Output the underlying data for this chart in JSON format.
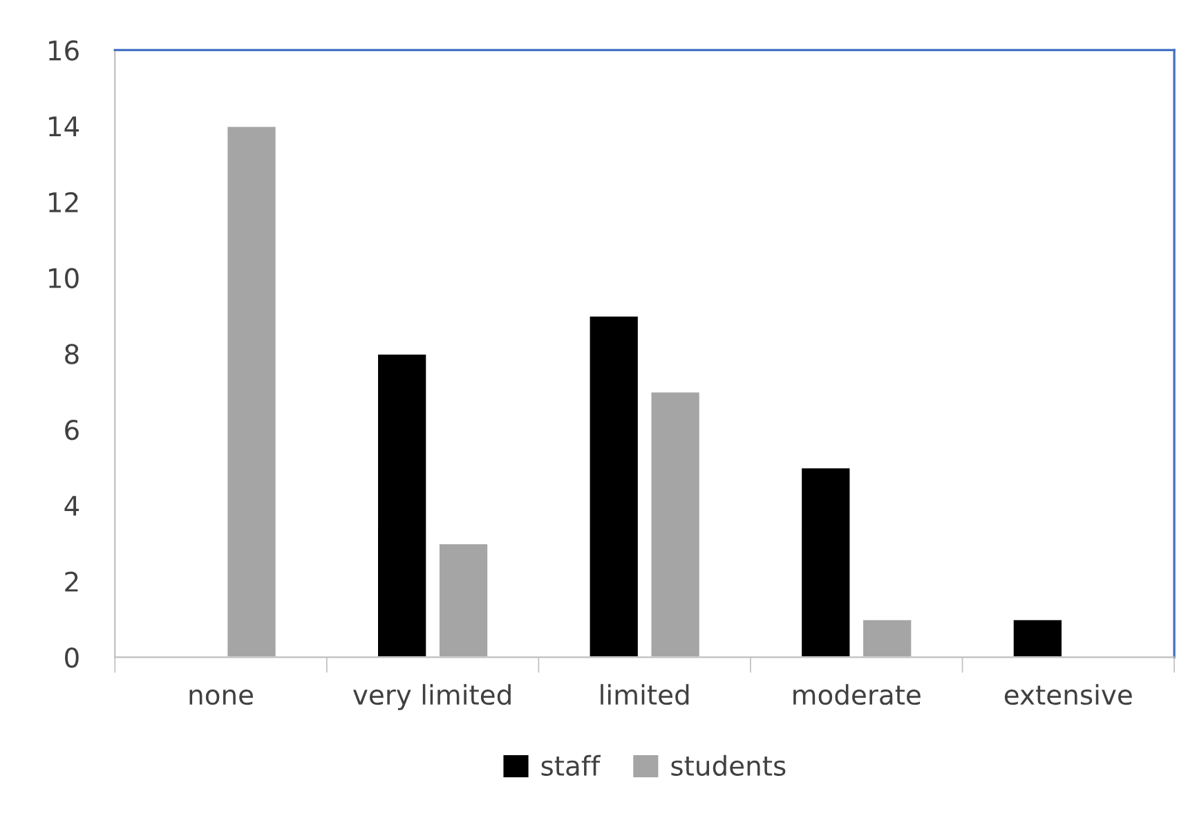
{
  "chart_data": {
    "type": "bar",
    "categories": [
      "none",
      "very limited",
      "limited",
      "moderate",
      "extensive"
    ],
    "series": [
      {
        "name": "staff",
        "color": "#000000",
        "values": [
          null,
          8,
          9,
          5,
          1
        ]
      },
      {
        "name": "students",
        "color": "#a5a5a5",
        "values": [
          14,
          3,
          7,
          1,
          null
        ]
      }
    ],
    "ylim": [
      0,
      16
    ],
    "yticks": [
      0,
      2,
      4,
      6,
      8,
      10,
      12,
      14,
      16
    ],
    "grid": false,
    "legend": "bottom"
  }
}
